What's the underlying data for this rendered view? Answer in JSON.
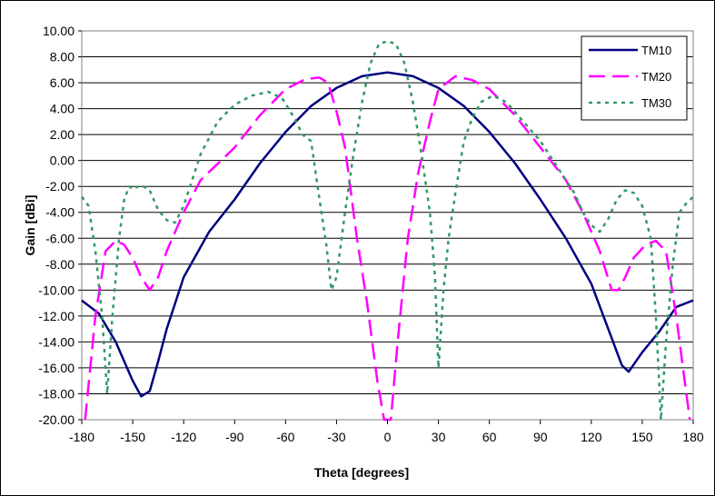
{
  "chart_data": {
    "type": "line",
    "title": "",
    "xlabel": "Theta [degrees]",
    "ylabel": "Gain [dBi]",
    "xlim": [
      -180,
      180
    ],
    "ylim": [
      -20,
      10
    ],
    "x_ticks": [
      "-180",
      "-150",
      "-120",
      "-90",
      "-60",
      "-30",
      "0",
      "30",
      "60",
      "90",
      "120",
      "150",
      "180"
    ],
    "y_ticks": [
      "10.00",
      "8.00",
      "6.00",
      "4.00",
      "2.00",
      "0.00",
      "-2.00",
      "-4.00",
      "-6.00",
      "-8.00",
      "-10.00",
      "-12.00",
      "-14.00",
      "-16.00",
      "-18.00",
      "-20.00"
    ],
    "grid": "horizontal",
    "legend_position": "top-right",
    "series": [
      {
        "name": "TM10",
        "color": "#000080",
        "style": "solid",
        "points": [
          [
            -180,
            -10.8
          ],
          [
            -170,
            -11.8
          ],
          [
            -160,
            -14
          ],
          [
            -150,
            -17
          ],
          [
            -145,
            -18.2
          ],
          [
            -140,
            -17.8
          ],
          [
            -135,
            -15.5
          ],
          [
            -130,
            -13
          ],
          [
            -120,
            -9
          ],
          [
            -105,
            -5.5
          ],
          [
            -90,
            -3
          ],
          [
            -75,
            -0.2
          ],
          [
            -60,
            2.2
          ],
          [
            -45,
            4.2
          ],
          [
            -30,
            5.6
          ],
          [
            -15,
            6.5
          ],
          [
            0,
            6.8
          ],
          [
            15,
            6.5
          ],
          [
            30,
            5.6
          ],
          [
            45,
            4.2
          ],
          [
            60,
            2.2
          ],
          [
            75,
            -0.2
          ],
          [
            90,
            -3
          ],
          [
            105,
            -6
          ],
          [
            120,
            -9.5
          ],
          [
            130,
            -13
          ],
          [
            138,
            -15.8
          ],
          [
            142,
            -16.3
          ],
          [
            150,
            -14.8
          ],
          [
            160,
            -13.2
          ],
          [
            170,
            -11.3
          ],
          [
            180,
            -10.8
          ]
        ]
      },
      {
        "name": "TM20",
        "color": "#ff00ff",
        "style": "dashed",
        "points": [
          [
            -178,
            -20
          ],
          [
            -172,
            -12
          ],
          [
            -166,
            -7
          ],
          [
            -160,
            -6.2
          ],
          [
            -155,
            -6.5
          ],
          [
            -150,
            -7.5
          ],
          [
            -145,
            -9
          ],
          [
            -140,
            -10
          ],
          [
            -135,
            -9
          ],
          [
            -130,
            -7
          ],
          [
            -120,
            -4
          ],
          [
            -110,
            -1.5
          ],
          [
            -90,
            1
          ],
          [
            -75,
            3.5
          ],
          [
            -60,
            5.5
          ],
          [
            -48,
            6.3
          ],
          [
            -40,
            6.4
          ],
          [
            -35,
            6
          ],
          [
            -30,
            3.8
          ],
          [
            -25,
            1
          ],
          [
            -18,
            -6
          ],
          [
            -12,
            -11
          ],
          [
            -6,
            -17
          ],
          [
            -2,
            -20
          ],
          [
            2,
            -20
          ],
          [
            6,
            -14
          ],
          [
            12,
            -6
          ],
          [
            18,
            -1
          ],
          [
            25,
            3
          ],
          [
            30,
            5.5
          ],
          [
            40,
            6.5
          ],
          [
            50,
            6.2
          ],
          [
            60,
            5.5
          ],
          [
            75,
            3.5
          ],
          [
            90,
            1
          ],
          [
            105,
            -1.5
          ],
          [
            115,
            -4
          ],
          [
            125,
            -7
          ],
          [
            132,
            -10
          ],
          [
            136,
            -10
          ],
          [
            140,
            -9
          ],
          [
            145,
            -7.5
          ],
          [
            152,
            -6.5
          ],
          [
            158,
            -6.2
          ],
          [
            164,
            -7
          ],
          [
            170,
            -12
          ],
          [
            176,
            -18
          ],
          [
            178,
            -20
          ]
        ]
      },
      {
        "name": "TM30",
        "color": "#339966",
        "style": "dotted",
        "points": [
          [
            -180,
            -2.8
          ],
          [
            -176,
            -3.5
          ],
          [
            -172,
            -7
          ],
          [
            -168,
            -12
          ],
          [
            -165,
            -18
          ],
          [
            -162,
            -12
          ],
          [
            -158,
            -6
          ],
          [
            -155,
            -3
          ],
          [
            -152,
            -2
          ],
          [
            -150,
            -2.2
          ],
          [
            -145,
            -1.9
          ],
          [
            -140,
            -2.3
          ],
          [
            -135,
            -3.8
          ],
          [
            -130,
            -4.6
          ],
          [
            -125,
            -4.8
          ],
          [
            -120,
            -3.5
          ],
          [
            -110,
            0.5
          ],
          [
            -100,
            3
          ],
          [
            -90,
            4.3
          ],
          [
            -80,
            5
          ],
          [
            -70,
            5.3
          ],
          [
            -62,
            4.8
          ],
          [
            -55,
            3.3
          ],
          [
            -50,
            2
          ],
          [
            -45,
            1.5
          ],
          [
            -40,
            -3
          ],
          [
            -36,
            -6.5
          ],
          [
            -33,
            -10
          ],
          [
            -30,
            -9
          ],
          [
            -25,
            -4
          ],
          [
            -20,
            0.5
          ],
          [
            -15,
            4.5
          ],
          [
            -10,
            7.5
          ],
          [
            -5,
            9
          ],
          [
            0,
            9.2
          ],
          [
            5,
            9
          ],
          [
            10,
            7.5
          ],
          [
            15,
            4.5
          ],
          [
            20,
            0.5
          ],
          [
            25,
            -4
          ],
          [
            28,
            -9
          ],
          [
            30,
            -16
          ],
          [
            33,
            -10
          ],
          [
            36,
            -6
          ],
          [
            40,
            -2.5
          ],
          [
            45,
            1.5
          ],
          [
            50,
            3.3
          ],
          [
            55,
            4.5
          ],
          [
            62,
            5
          ],
          [
            70,
            4.5
          ],
          [
            80,
            3
          ],
          [
            90,
            1.5
          ],
          [
            100,
            -0.5
          ],
          [
            110,
            -2.5
          ],
          [
            115,
            -4
          ],
          [
            120,
            -5
          ],
          [
            125,
            -5.5
          ],
          [
            130,
            -4.5
          ],
          [
            135,
            -3
          ],
          [
            140,
            -2.3
          ],
          [
            145,
            -2.5
          ],
          [
            150,
            -3.5
          ],
          [
            155,
            -6
          ],
          [
            158,
            -12
          ],
          [
            161,
            -20
          ],
          [
            164,
            -14
          ],
          [
            168,
            -8
          ],
          [
            172,
            -4
          ],
          [
            176,
            -3.3
          ],
          [
            180,
            -2.8
          ]
        ]
      }
    ]
  }
}
